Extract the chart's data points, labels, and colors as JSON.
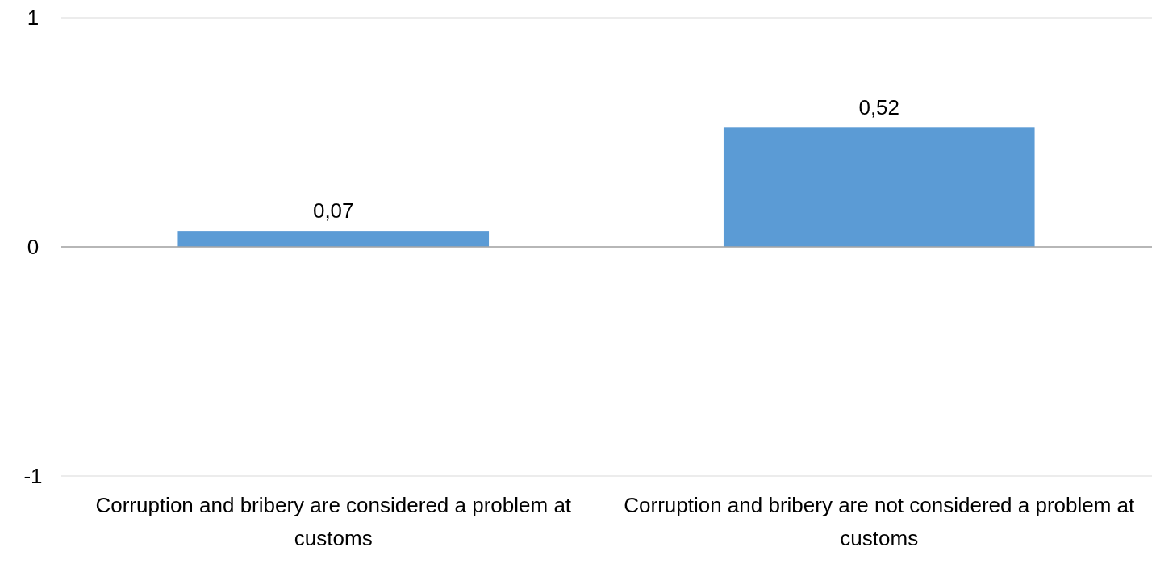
{
  "chart_data": {
    "type": "bar",
    "categories": [
      "Corruption and bribery are considered a problem at customs",
      "Corruption and bribery are not considered a problem at customs"
    ],
    "values": [
      0.07,
      0.52
    ],
    "value_labels": [
      "0,07",
      "0,52"
    ],
    "color": "#5b9bd5",
    "ylim": [
      -1,
      1
    ],
    "yticks": [
      -1,
      0,
      1
    ],
    "grid": "y"
  }
}
